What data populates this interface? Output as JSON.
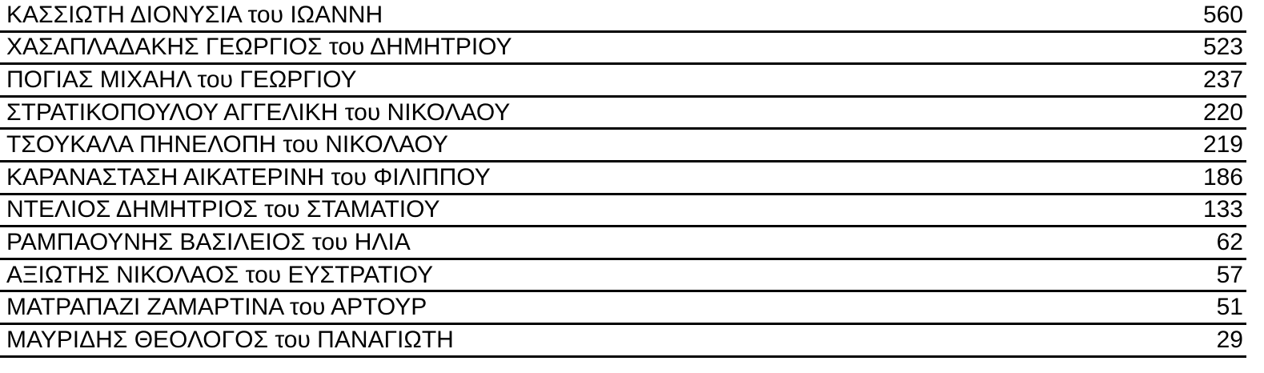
{
  "colors": {
    "background": "#ffffff",
    "text": "#000000",
    "rule": "#000000"
  },
  "table": {
    "description": "candidate-vote-results",
    "columns": [
      "candidate",
      "votes"
    ],
    "rows": [
      {
        "name": "ΚΑΣΣΙΩΤΗ ΔΙΟΝΥΣΙΑ του ΙΩΑΝΝΗ",
        "votes": "560"
      },
      {
        "name": "ΧΑΣΑΠΛΑΔΑΚΗΣ ΓΕΩΡΓΙΟΣ του ΔΗΜΗΤΡΙΟΥ",
        "votes": "523"
      },
      {
        "name": "ΠΟΓΙΑΣ ΜΙΧΑΗΛ του ΓΕΩΡΓΙΟΥ",
        "votes": "237"
      },
      {
        "name": "ΣΤΡΑΤΙΚΟΠΟΥΛΟΥ ΑΓΓΕΛΙΚΗ του ΝΙΚΟΛΑΟΥ",
        "votes": "220"
      },
      {
        "name": "ΤΣΟΥΚΑΛΑ ΠΗΝΕΛΟΠΗ του ΝΙΚΟΛΑΟΥ",
        "votes": "219"
      },
      {
        "name": "ΚΑΡΑΝΑΣΤΑΣΗ ΑΙΚΑΤΕΡΙΝΗ του ΦΙΛΙΠΠΟΥ",
        "votes": "186"
      },
      {
        "name": "ΝΤΕΛΙΟΣ ΔΗΜΗΤΡΙΟΣ του ΣΤΑΜΑΤΙΟΥ",
        "votes": "133"
      },
      {
        "name": "ΡΑΜΠΑΟΥΝΗΣ ΒΑΣΙΛΕΙΟΣ του ΗΛΙΑ",
        "votes": "62"
      },
      {
        "name": "ΑΞΙΩΤΗΣ ΝΙΚΟΛΑΟΣ του ΕΥΣΤΡΑΤΙΟΥ",
        "votes": "57"
      },
      {
        "name": "ΜΑΤΡΑΠΑΖΙ ΖΑΜΑΡΤΙΝΑ του ΑΡΤΟΥΡ",
        "votes": "51"
      },
      {
        "name": "ΜΑΥΡΙΔΗΣ ΘΕΟΛΟΓΟΣ του ΠΑΝΑΓΙΩΤΗ",
        "votes": "29"
      }
    ]
  }
}
